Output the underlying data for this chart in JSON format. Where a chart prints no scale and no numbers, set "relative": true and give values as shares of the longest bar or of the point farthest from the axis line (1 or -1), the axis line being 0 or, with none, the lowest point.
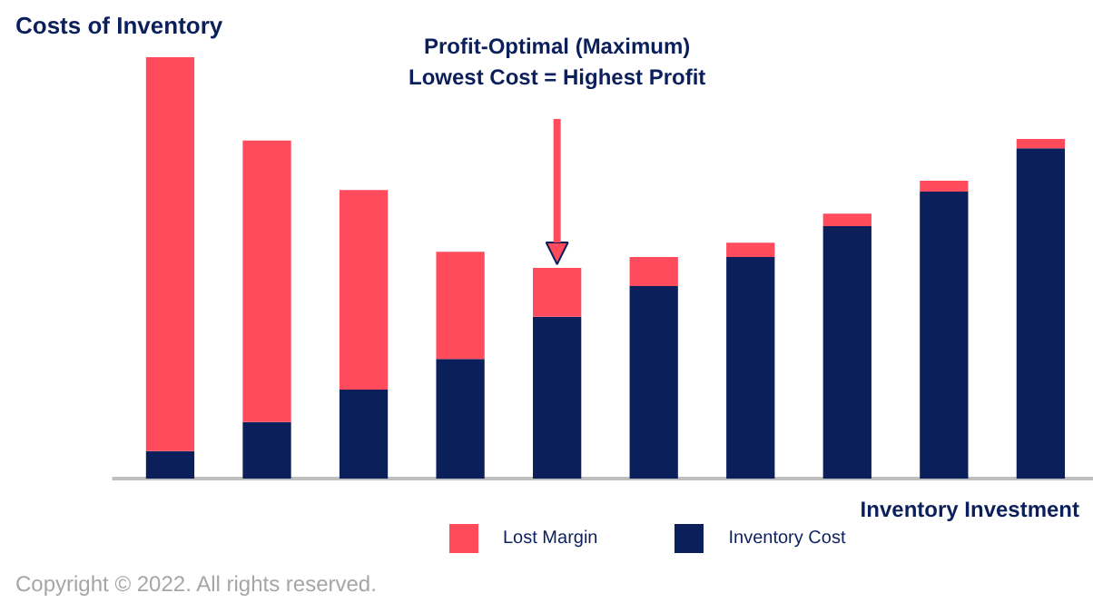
{
  "chart_data": {
    "type": "bar",
    "stacked": true,
    "relative": true,
    "ylabel": "Costs of Inventory",
    "xlabel": "Inventory Investment",
    "categories": [
      null,
      null,
      null,
      null,
      null,
      null,
      null,
      null,
      null,
      null
    ],
    "series": [
      {
        "name": "Inventory Cost",
        "color": "#0b1f5b",
        "values": [
          0.065,
          0.134,
          0.211,
          0.284,
          0.384,
          0.457,
          0.526,
          0.599,
          0.681,
          0.784
        ]
      },
      {
        "name": "Lost Margin",
        "color": "#ff4b5c",
        "values": [
          0.935,
          0.668,
          0.474,
          0.254,
          0.116,
          0.069,
          0.034,
          0.03,
          0.026,
          0.022
        ]
      }
    ],
    "annotations": [
      "Profit-Optimal (Maximum)\nLowest Cost = Highest Profit",
      "Copyright © 2022. All rights reserved."
    ],
    "legend": "bottom",
    "grid": false
  }
}
